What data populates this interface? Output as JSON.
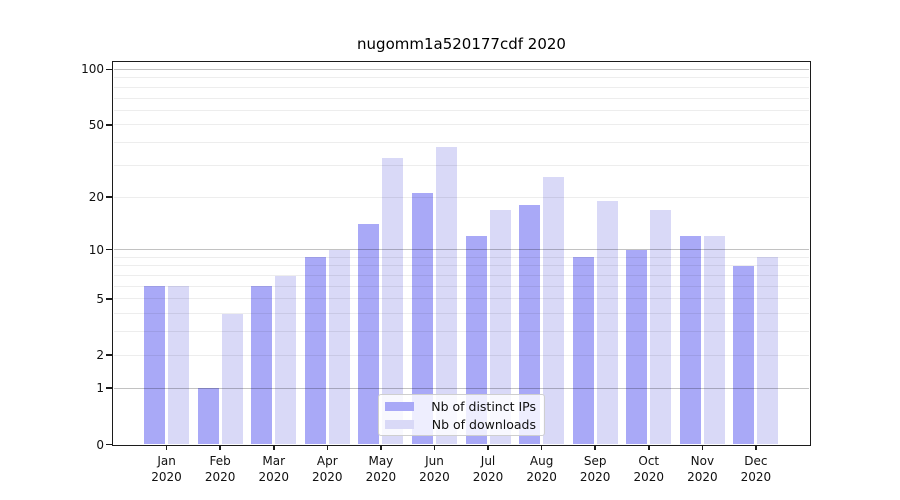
{
  "figure": {
    "title": "nugomm1a520177cdf 2020",
    "background": "#ffffff"
  },
  "legend": {
    "items": [
      {
        "label": "Nb of distinct IPs",
        "color": "#a9a9f7"
      },
      {
        "label": "Nb of downloads",
        "color": "#d9d9f7"
      }
    ]
  },
  "chart_data": {
    "type": "bar",
    "title": "nugomm1a520177cdf 2020",
    "categories": [
      "Jan 2020",
      "Feb 2020",
      "Mar 2020",
      "Apr 2020",
      "May 2020",
      "Jun 2020",
      "Jul 2020",
      "Aug 2020",
      "Sep 2020",
      "Oct 2020",
      "Nov 2020",
      "Dec 2020"
    ],
    "months": [
      "Jan",
      "Feb",
      "Mar",
      "Apr",
      "May",
      "Jun",
      "Jul",
      "Aug",
      "Sep",
      "Oct",
      "Nov",
      "Dec"
    ],
    "year_label": "2020",
    "series": [
      {
        "name": "Nb of distinct IPs",
        "color": "#a9a9f7",
        "values": [
          6,
          1,
          6,
          9,
          14,
          21,
          12,
          18,
          9,
          10,
          12,
          8
        ]
      },
      {
        "name": "Nb of downloads",
        "color": "#d9d9f7",
        "values": [
          6,
          4,
          7,
          10,
          33,
          38,
          17,
          26,
          19,
          17,
          12,
          9
        ]
      }
    ],
    "xlabel": "",
    "ylabel": "",
    "yscale": "log1p",
    "ylim": [
      0,
      110.4
    ],
    "y_ticks": [
      0,
      1,
      2,
      5,
      10,
      20,
      50,
      100
    ],
    "grid_major": [
      1,
      10,
      100
    ],
    "grid_minor": [
      2,
      3,
      4,
      5,
      6,
      7,
      8,
      9,
      20,
      30,
      40,
      50,
      60,
      70,
      80,
      90
    ],
    "grid_on": true,
    "legend_position": "lower center",
    "bar_group": "grouped-pair"
  }
}
